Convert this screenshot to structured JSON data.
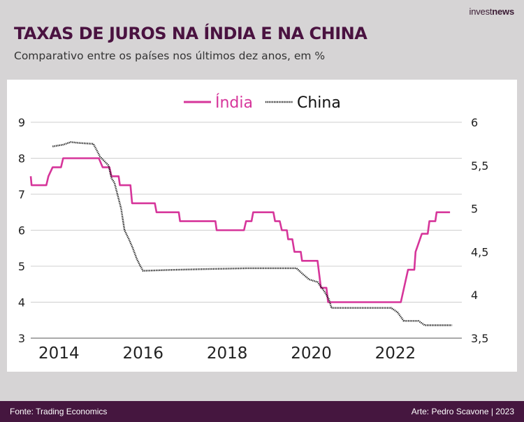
{
  "brand": {
    "light": "invest",
    "bold": "news"
  },
  "title": "TAXAS DE JUROS NA ÍNDIA E NA CHINA",
  "subtitle": "Comparativo entre os países nos últimos dez anos, em %",
  "footer": {
    "source": "Fonte: Trading Economics",
    "credit": "Arte: Pedro Scavone | 2023"
  },
  "colors": {
    "india": "#d6359a",
    "china": "#111111",
    "title": "#4a1240",
    "footer_bg": "#45163f"
  },
  "chart_data": {
    "type": "line",
    "title": "TAXAS DE JUROS NA ÍNDIA E NA CHINA",
    "subtitle": "Comparativo entre os países nos últimos dez anos, em %",
    "legend_position": "top-center",
    "grid": true,
    "xlim": [
      2013.33,
      2023.58
    ],
    "x_ticks": [
      2014,
      2016,
      2018,
      2020,
      2022
    ],
    "x_tick_labels": [
      "2014",
      "2016",
      "2018",
      "2020",
      "2022"
    ],
    "y_left": {
      "lim": [
        3,
        9
      ],
      "ticks": [
        3,
        4,
        5,
        6,
        7,
        8,
        9
      ],
      "tick_labels": [
        "3",
        "4",
        "5",
        "6",
        "7",
        "8",
        "9"
      ]
    },
    "y_right": {
      "lim": [
        3.5,
        6
      ],
      "ticks": [
        3.5,
        4,
        4.5,
        5,
        5.5,
        6
      ],
      "tick_labels": [
        "3,5",
        "4",
        "4,5",
        "5",
        "5,5",
        "6"
      ]
    },
    "series": [
      {
        "name": "Índia",
        "axis": "left",
        "style": "solid",
        "color": "#d6359a",
        "points": [
          [
            2013.33,
            7.5
          ],
          [
            2013.35,
            7.25
          ],
          [
            2013.7,
            7.25
          ],
          [
            2013.75,
            7.5
          ],
          [
            2013.85,
            7.75
          ],
          [
            2014.05,
            7.75
          ],
          [
            2014.1,
            8.0
          ],
          [
            2014.95,
            8.0
          ],
          [
            2015.04,
            7.75
          ],
          [
            2015.2,
            7.75
          ],
          [
            2015.25,
            7.5
          ],
          [
            2015.42,
            7.5
          ],
          [
            2015.45,
            7.25
          ],
          [
            2015.7,
            7.25
          ],
          [
            2015.74,
            6.75
          ],
          [
            2016.28,
            6.75
          ],
          [
            2016.32,
            6.5
          ],
          [
            2016.85,
            6.5
          ],
          [
            2016.88,
            6.25
          ],
          [
            2017.72,
            6.25
          ],
          [
            2017.75,
            6.0
          ],
          [
            2018.4,
            6.0
          ],
          [
            2018.45,
            6.25
          ],
          [
            2018.58,
            6.25
          ],
          [
            2018.62,
            6.5
          ],
          [
            2019.1,
            6.5
          ],
          [
            2019.14,
            6.25
          ],
          [
            2019.25,
            6.25
          ],
          [
            2019.3,
            6.0
          ],
          [
            2019.42,
            6.0
          ],
          [
            2019.45,
            5.75
          ],
          [
            2019.55,
            5.75
          ],
          [
            2019.6,
            5.4
          ],
          [
            2019.75,
            5.4
          ],
          [
            2019.78,
            5.15
          ],
          [
            2020.15,
            5.15
          ],
          [
            2020.23,
            4.4
          ],
          [
            2020.36,
            4.4
          ],
          [
            2020.4,
            4.0
          ],
          [
            2022.13,
            4.0
          ],
          [
            2022.3,
            4.9
          ],
          [
            2022.45,
            4.9
          ],
          [
            2022.48,
            5.4
          ],
          [
            2022.63,
            5.9
          ],
          [
            2022.77,
            5.9
          ],
          [
            2022.81,
            6.25
          ],
          [
            2022.95,
            6.25
          ],
          [
            2022.98,
            6.5
          ],
          [
            2023.3,
            6.5
          ]
        ]
      },
      {
        "name": "China",
        "axis": "right",
        "style": "dotted",
        "color": "#111111",
        "points": [
          [
            2013.85,
            5.72
          ],
          [
            2014.1,
            5.74
          ],
          [
            2014.28,
            5.77
          ],
          [
            2014.5,
            5.76
          ],
          [
            2014.82,
            5.75
          ],
          [
            2014.98,
            5.6
          ],
          [
            2015.08,
            5.55
          ],
          [
            2015.18,
            5.5
          ],
          [
            2015.25,
            5.35
          ],
          [
            2015.32,
            5.3
          ],
          [
            2015.4,
            5.15
          ],
          [
            2015.48,
            5.0
          ],
          [
            2015.56,
            4.75
          ],
          [
            2015.66,
            4.65
          ],
          [
            2015.75,
            4.55
          ],
          [
            2015.85,
            4.42
          ],
          [
            2015.92,
            4.35
          ],
          [
            2016.0,
            4.28
          ],
          [
            2016.6,
            4.29
          ],
          [
            2017.5,
            4.3
          ],
          [
            2018.5,
            4.31
          ],
          [
            2019.2,
            4.31
          ],
          [
            2019.65,
            4.31
          ],
          [
            2019.78,
            4.25
          ],
          [
            2019.95,
            4.18
          ],
          [
            2020.15,
            4.15
          ],
          [
            2020.3,
            4.05
          ],
          [
            2020.42,
            3.95
          ],
          [
            2020.48,
            3.85
          ],
          [
            2021.2,
            3.85
          ],
          [
            2021.9,
            3.85
          ],
          [
            2022.05,
            3.8
          ],
          [
            2022.2,
            3.7
          ],
          [
            2022.55,
            3.7
          ],
          [
            2022.7,
            3.65
          ],
          [
            2023.35,
            3.65
          ]
        ]
      }
    ]
  }
}
